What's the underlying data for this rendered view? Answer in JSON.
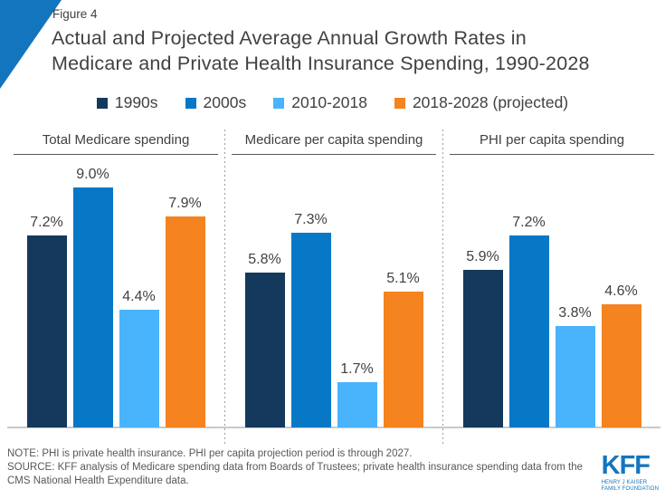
{
  "figure_label": "Figure 4",
  "title": {
    "line1": "Actual and Projected Average Annual Growth Rates in",
    "line2": "Medicare and Private Health Insurance Spending, 1990-2028"
  },
  "legend": {
    "items": [
      {
        "label": "1990s",
        "color": "#14395C"
      },
      {
        "label": "2000s",
        "color": "#0778C6"
      },
      {
        "label": "2010-2018",
        "color": "#49B3FB"
      },
      {
        "label": "2018-2028 (projected)",
        "color": "#F5831F"
      }
    ]
  },
  "chart_data": {
    "type": "bar",
    "title": "Actual and Projected Average Annual Growth Rates in Medicare and Private Health Insurance Spending, 1990-2028",
    "unit": "percent average annual growth",
    "ylim": [
      0,
      9.5
    ],
    "grid": false,
    "legend_position": "top",
    "series_labels": [
      "1990s",
      "2000s",
      "2010-2018",
      "2018-2028 (projected)"
    ],
    "series_colors": [
      "#14395C",
      "#0778C6",
      "#49B3FB",
      "#F5831F"
    ],
    "panels": [
      {
        "title": "Total Medicare spending",
        "values": [
          7.2,
          9.0,
          4.4,
          7.9
        ],
        "value_labels": [
          "7.2%",
          "9.0%",
          "4.4%",
          "7.9%"
        ]
      },
      {
        "title": "Medicare per capita spending",
        "values": [
          5.8,
          7.3,
          1.7,
          5.1
        ],
        "value_labels": [
          "5.8%",
          "7.3%",
          "1.7%",
          "5.1%"
        ]
      },
      {
        "title": "PHI per capita spending",
        "values": [
          5.9,
          7.2,
          3.8,
          4.6
        ],
        "value_labels": [
          "5.9%",
          "7.2%",
          "3.8%",
          "4.6%"
        ]
      }
    ]
  },
  "note": {
    "note_line": "NOTE: PHI is private health insurance. PHI per capita projection period is through 2027.",
    "source_line": "SOURCE: KFF analysis of Medicare spending data from Boards of Trustees; private health insurance spending data from the CMS National Health Expenditure data."
  },
  "logo": {
    "text": "KFF",
    "tagline1": "HENRY J KAISER",
    "tagline2": "FAMILY FOUNDATION"
  },
  "colors": {
    "kff_blue": "#1375BE",
    "text_dark": "#414042",
    "note_gray": "#57585A",
    "baseline_gray": "#C9C9C9",
    "separator_gray": "#9B9DA0",
    "rule_gray": "#58595B"
  }
}
